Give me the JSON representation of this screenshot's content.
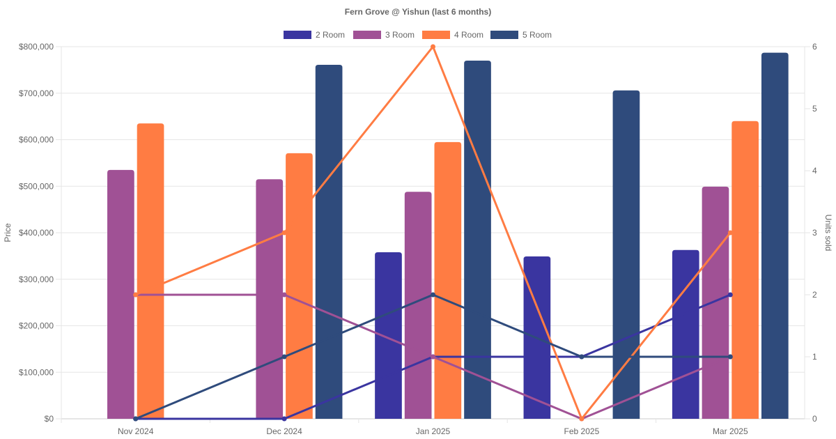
{
  "chart_data": {
    "type": "bar",
    "title": "Fern Grove @ Yishun (last 6 months)",
    "categories": [
      "Nov 2024",
      "Dec 2024",
      "Jan 2025",
      "Feb 2025",
      "Mar 2025"
    ],
    "ylabel": "Price",
    "y2label": "Units sold",
    "ylim": [
      0,
      800000
    ],
    "y2lim": [
      0,
      6
    ],
    "y_ticks": [
      "$0",
      "$100,000",
      "$200,000",
      "$300,000",
      "$400,000",
      "$500,000",
      "$600,000",
      "$700,000",
      "$800,000"
    ],
    "y_tick_values": [
      0,
      100000,
      200000,
      300000,
      400000,
      500000,
      600000,
      700000,
      800000
    ],
    "y2_ticks": [
      "0",
      "1",
      "2",
      "3",
      "4",
      "5",
      "6"
    ],
    "y2_tick_values": [
      0,
      1,
      2,
      3,
      4,
      5,
      6
    ],
    "grid": true,
    "legend_position": "top",
    "series": [
      {
        "name": "2 Room",
        "color": "#3a35a0",
        "price": [
          null,
          null,
          358000,
          349000,
          363000
        ],
        "units": [
          0,
          0,
          1,
          1,
          2
        ]
      },
      {
        "name": "3 Room",
        "color": "#a05195",
        "price": [
          535000,
          515000,
          488000,
          null,
          499000
        ],
        "units": [
          2,
          2,
          1,
          0,
          1
        ]
      },
      {
        "name": "4 Room",
        "color": "#ff7c43",
        "price": [
          635000,
          571000,
          595000,
          null,
          640000
        ],
        "units": [
          2,
          3,
          6,
          0,
          3
        ]
      },
      {
        "name": "5 Room",
        "color": "#2f4b7c",
        "price": [
          null,
          761000,
          770000,
          706000,
          787000
        ],
        "units": [
          0,
          1,
          2,
          1,
          1
        ]
      }
    ]
  }
}
